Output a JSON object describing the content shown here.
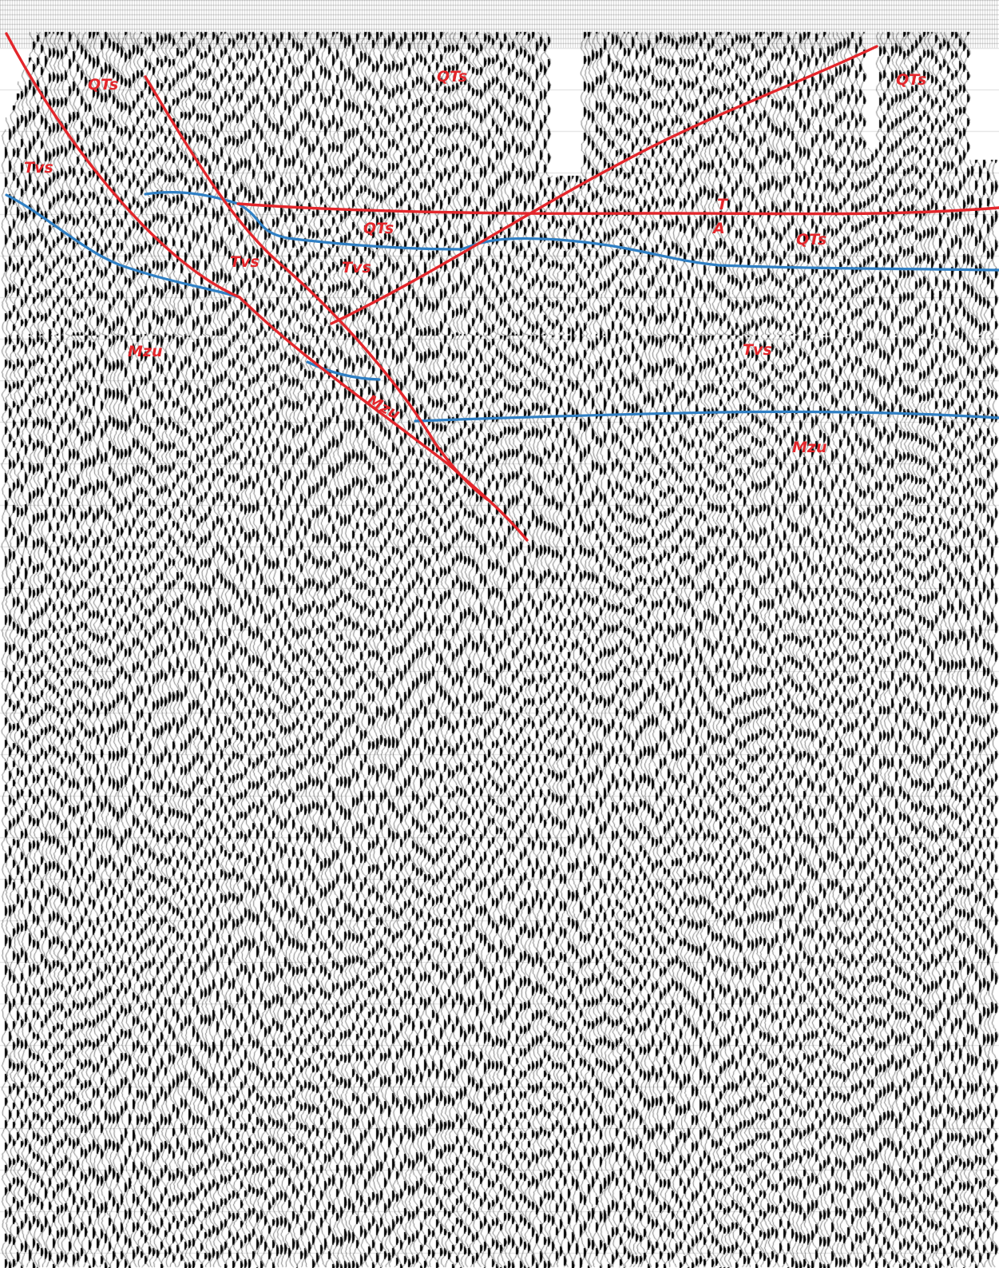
{
  "section": {
    "colors": {
      "fault": "#e3262b",
      "horizon": "#2f7fc4",
      "label": "#e3262b",
      "trace": "#000000",
      "background": "#ffffff"
    },
    "labels": {
      "qts_1": "QTs",
      "qts_2": "QTs",
      "qts_3": "QTs",
      "qts_4": "QTs",
      "qts_5": "QTs",
      "tvs_1": "Tvs",
      "tvs_2": "Tvs",
      "tvs_3": "Tvs",
      "tvs_4": "Tvs",
      "mzu_1": "Mzu",
      "mzu_2": "Mzu",
      "mzu_3": "Mzu",
      "t_marker": "T",
      "a_marker": "A"
    }
  }
}
